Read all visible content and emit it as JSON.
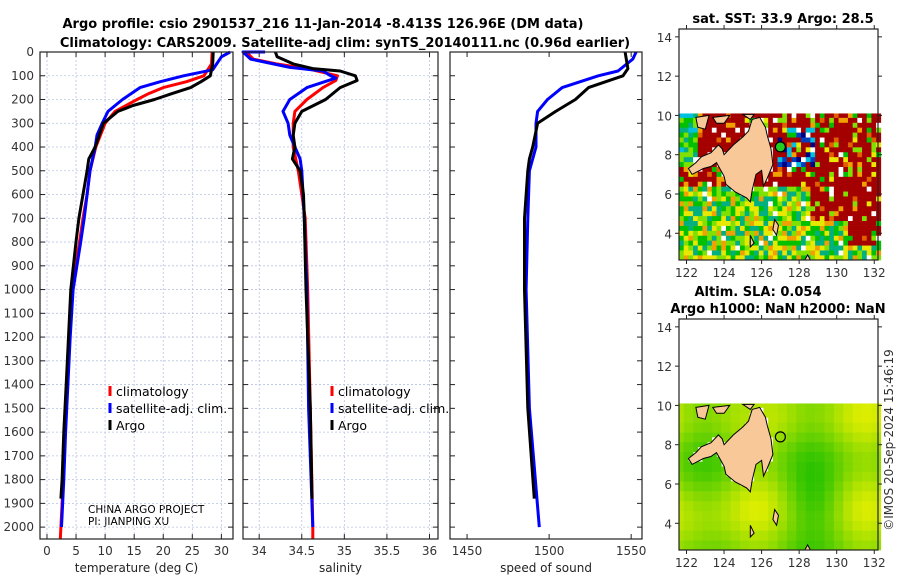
{
  "title": {
    "line1": "Argo profile: csio 2901537_216 11-Jan-2014 -8.413S 126.96E (DM data)",
    "line2": "Climatology: CARS2009. Satellite-adj clim: synTS_20140111.nc (0.96d earlier)"
  },
  "legend": [
    {
      "label": "climatology",
      "color": "#ff0000"
    },
    {
      "label": "satellite-adj. clim.",
      "color": "#0000ff"
    },
    {
      "label": "Argo",
      "color": "#000000"
    }
  ],
  "project": {
    "line1": "CHINA ARGO PROJECT",
    "line2": "PI: JIANPING XU"
  },
  "credit": "©IMOS 20-Sep-2024 15:46:19",
  "chart_data": [
    {
      "type": "line",
      "name": "temperature",
      "xlabel": "temperature (deg C)",
      "ylabel": "",
      "xlim": [
        -1.2,
        32
      ],
      "ylim": [
        2050,
        0
      ],
      "grid": true,
      "xticks": [
        "0",
        "5",
        "10",
        "15",
        "20",
        "25",
        "30"
      ],
      "yticks": [
        "0",
        "100",
        "200",
        "300",
        "400",
        "500",
        "600",
        "700",
        "800",
        "900",
        "1000",
        "1100",
        "1200",
        "1300",
        "1400",
        "1500",
        "1600",
        "1700",
        "1800",
        "1900",
        "2000"
      ],
      "series": [
        {
          "name": "climatology",
          "color": "#ff0000",
          "depth": [
            0,
            50,
            100,
            125,
            150,
            175,
            200,
            250,
            300,
            400,
            500,
            600,
            700,
            800,
            1000,
            1200,
            1400,
            1600,
            1800,
            2000,
            2050
          ],
          "values": [
            28.4,
            28.3,
            27,
            24,
            20,
            17.5,
            15.5,
            11.7,
            10,
            8.4,
            7.4,
            6.9,
            6.2,
            5.6,
            4.3,
            3.9,
            3.5,
            3.1,
            2.8,
            2.4,
            2.3
          ]
        },
        {
          "name": "satellite-adj. clim.",
          "color": "#0000ff",
          "depth": [
            0,
            20,
            75,
            100,
            125,
            150,
            200,
            250,
            300,
            350,
            400,
            500,
            600,
            700,
            800,
            1000,
            1200,
            1400,
            1600,
            1800,
            2000
          ],
          "values": [
            31.5,
            30,
            28.5,
            23.5,
            19.5,
            16,
            13,
            10.5,
            9.5,
            8.6,
            8.3,
            7.4,
            6.9,
            6.4,
            5.8,
            4.5,
            4.0,
            3.6,
            3.2,
            2.9,
            2.5
          ]
        },
        {
          "name": "Argo",
          "color": "#000000",
          "depth": [
            0,
            50,
            100,
            125,
            150,
            175,
            200,
            225,
            250,
            300,
            350,
            400,
            450,
            500,
            600,
            700,
            800,
            1000,
            1200,
            1400,
            1600,
            1800,
            1880
          ],
          "values": [
            28.6,
            28.5,
            28.1,
            26.5,
            24.7,
            21.5,
            18.5,
            14.8,
            12.2,
            9.7,
            9.0,
            8.3,
            7.2,
            6.9,
            6.2,
            5.5,
            5.0,
            4.1,
            3.7,
            3.3,
            2.9,
            2.6,
            2.4
          ]
        }
      ]
    },
    {
      "type": "line",
      "name": "salinity",
      "xlabel": "salinity",
      "ylabel": "",
      "xlim": [
        33.81,
        36.1
      ],
      "ylim": [
        2050,
        0
      ],
      "grid": true,
      "xticks": [
        "34",
        "34.5",
        "35",
        "35.5",
        "36"
      ],
      "series": [
        {
          "name": "climatology",
          "color": "#ff0000",
          "depth": [
            0,
            30,
            50,
            70,
            100,
            120,
            150,
            200,
            250,
            300,
            400,
            500,
            600,
            700,
            1000,
            1500,
            2000,
            2050
          ],
          "values": [
            33.85,
            33.93,
            34.2,
            34.56,
            34.92,
            34.9,
            34.75,
            34.56,
            34.42,
            34.4,
            34.4,
            34.46,
            34.5,
            34.54,
            34.57,
            34.6,
            34.63,
            34.63
          ]
        },
        {
          "name": "satellite-adj. clim.",
          "color": "#0000ff",
          "depth": [
            0,
            0,
            30,
            65,
            80,
            100,
            110,
            150,
            200,
            250,
            300,
            350,
            400,
            450,
            500,
            700,
            1000,
            1500,
            2000
          ],
          "values": [
            34.07,
            33.81,
            33.9,
            34.36,
            34.75,
            34.84,
            34.9,
            34.56,
            34.36,
            34.28,
            34.34,
            34.36,
            34.42,
            34.48,
            34.5,
            34.53,
            34.56,
            34.58,
            34.63
          ]
        },
        {
          "name": "Argo",
          "color": "#000000",
          "depth": [
            0,
            20,
            50,
            70,
            80,
            100,
            120,
            150,
            200,
            250,
            300,
            350,
            400,
            450,
            500,
            600,
            700,
            1000,
            1500,
            1880
          ],
          "values": [
            34.19,
            34.21,
            34.4,
            34.63,
            34.95,
            35.13,
            35.15,
            34.95,
            34.78,
            34.5,
            34.42,
            34.4,
            34.42,
            34.39,
            34.48,
            34.52,
            34.53,
            34.55,
            34.6,
            34.62
          ]
        }
      ]
    },
    {
      "type": "line",
      "name": "speed-of-sound",
      "xlabel": "speed of sound",
      "ylabel": "",
      "xlim": [
        1439.6,
        1556.6
      ],
      "ylim": [
        2050,
        0
      ],
      "grid": false,
      "xticks": [
        "1450",
        "1500",
        "1550"
      ],
      "series": [
        {
          "name": "satellite-adj. clim.",
          "color": "#0000ff",
          "depth": [
            0,
            30,
            80,
            100,
            150,
            200,
            250,
            300,
            400,
            450,
            500,
            700,
            1000,
            1500,
            2000
          ],
          "values": [
            1553,
            1551,
            1542,
            1530,
            1508,
            1499,
            1493,
            1492,
            1492,
            1490,
            1488,
            1487,
            1486,
            1488,
            1494
          ]
        },
        {
          "name": "Argo",
          "color": "#000000",
          "depth": [
            0,
            70,
            100,
            150,
            200,
            250,
            300,
            400,
            450,
            500,
            700,
            1000,
            1500,
            1880
          ],
          "values": [
            1546.3,
            1548,
            1545,
            1524,
            1516,
            1504,
            1493,
            1490,
            1488,
            1487,
            1485,
            1485,
            1487,
            1491
          ]
        }
      ]
    },
    {
      "type": "heatmap",
      "name": "sst-map",
      "title": "sat. SST: 33.9 Argo: 28.5",
      "xlim": [
        121.6,
        132.2
      ],
      "ylim": [
        2.64,
        14.4
      ],
      "data_lat_max": 10.1,
      "xticks": [
        "122",
        "124",
        "126",
        "128",
        "130",
        "132"
      ],
      "yticks": [
        "4",
        "6",
        "8",
        "10",
        "12",
        "14"
      ],
      "float": {
        "lon": 127.0,
        "lat": 8.4,
        "fill": "#22cc22"
      }
    },
    {
      "type": "heatmap",
      "name": "sla-map",
      "title": "Altim. SLA: 0.054",
      "subtitle": "Argo h1000: NaN h2000: NaN",
      "xlim": [
        121.6,
        132.2
      ],
      "ylim": [
        2.64,
        14.4
      ],
      "data_lat_max": 10.1,
      "xticks": [
        "122",
        "124",
        "126",
        "128",
        "130",
        "132"
      ],
      "yticks": [
        "4",
        "6",
        "8",
        "10",
        "12",
        "14"
      ],
      "float": {
        "lon": 127.0,
        "lat": 8.4,
        "fill": "none"
      }
    }
  ]
}
